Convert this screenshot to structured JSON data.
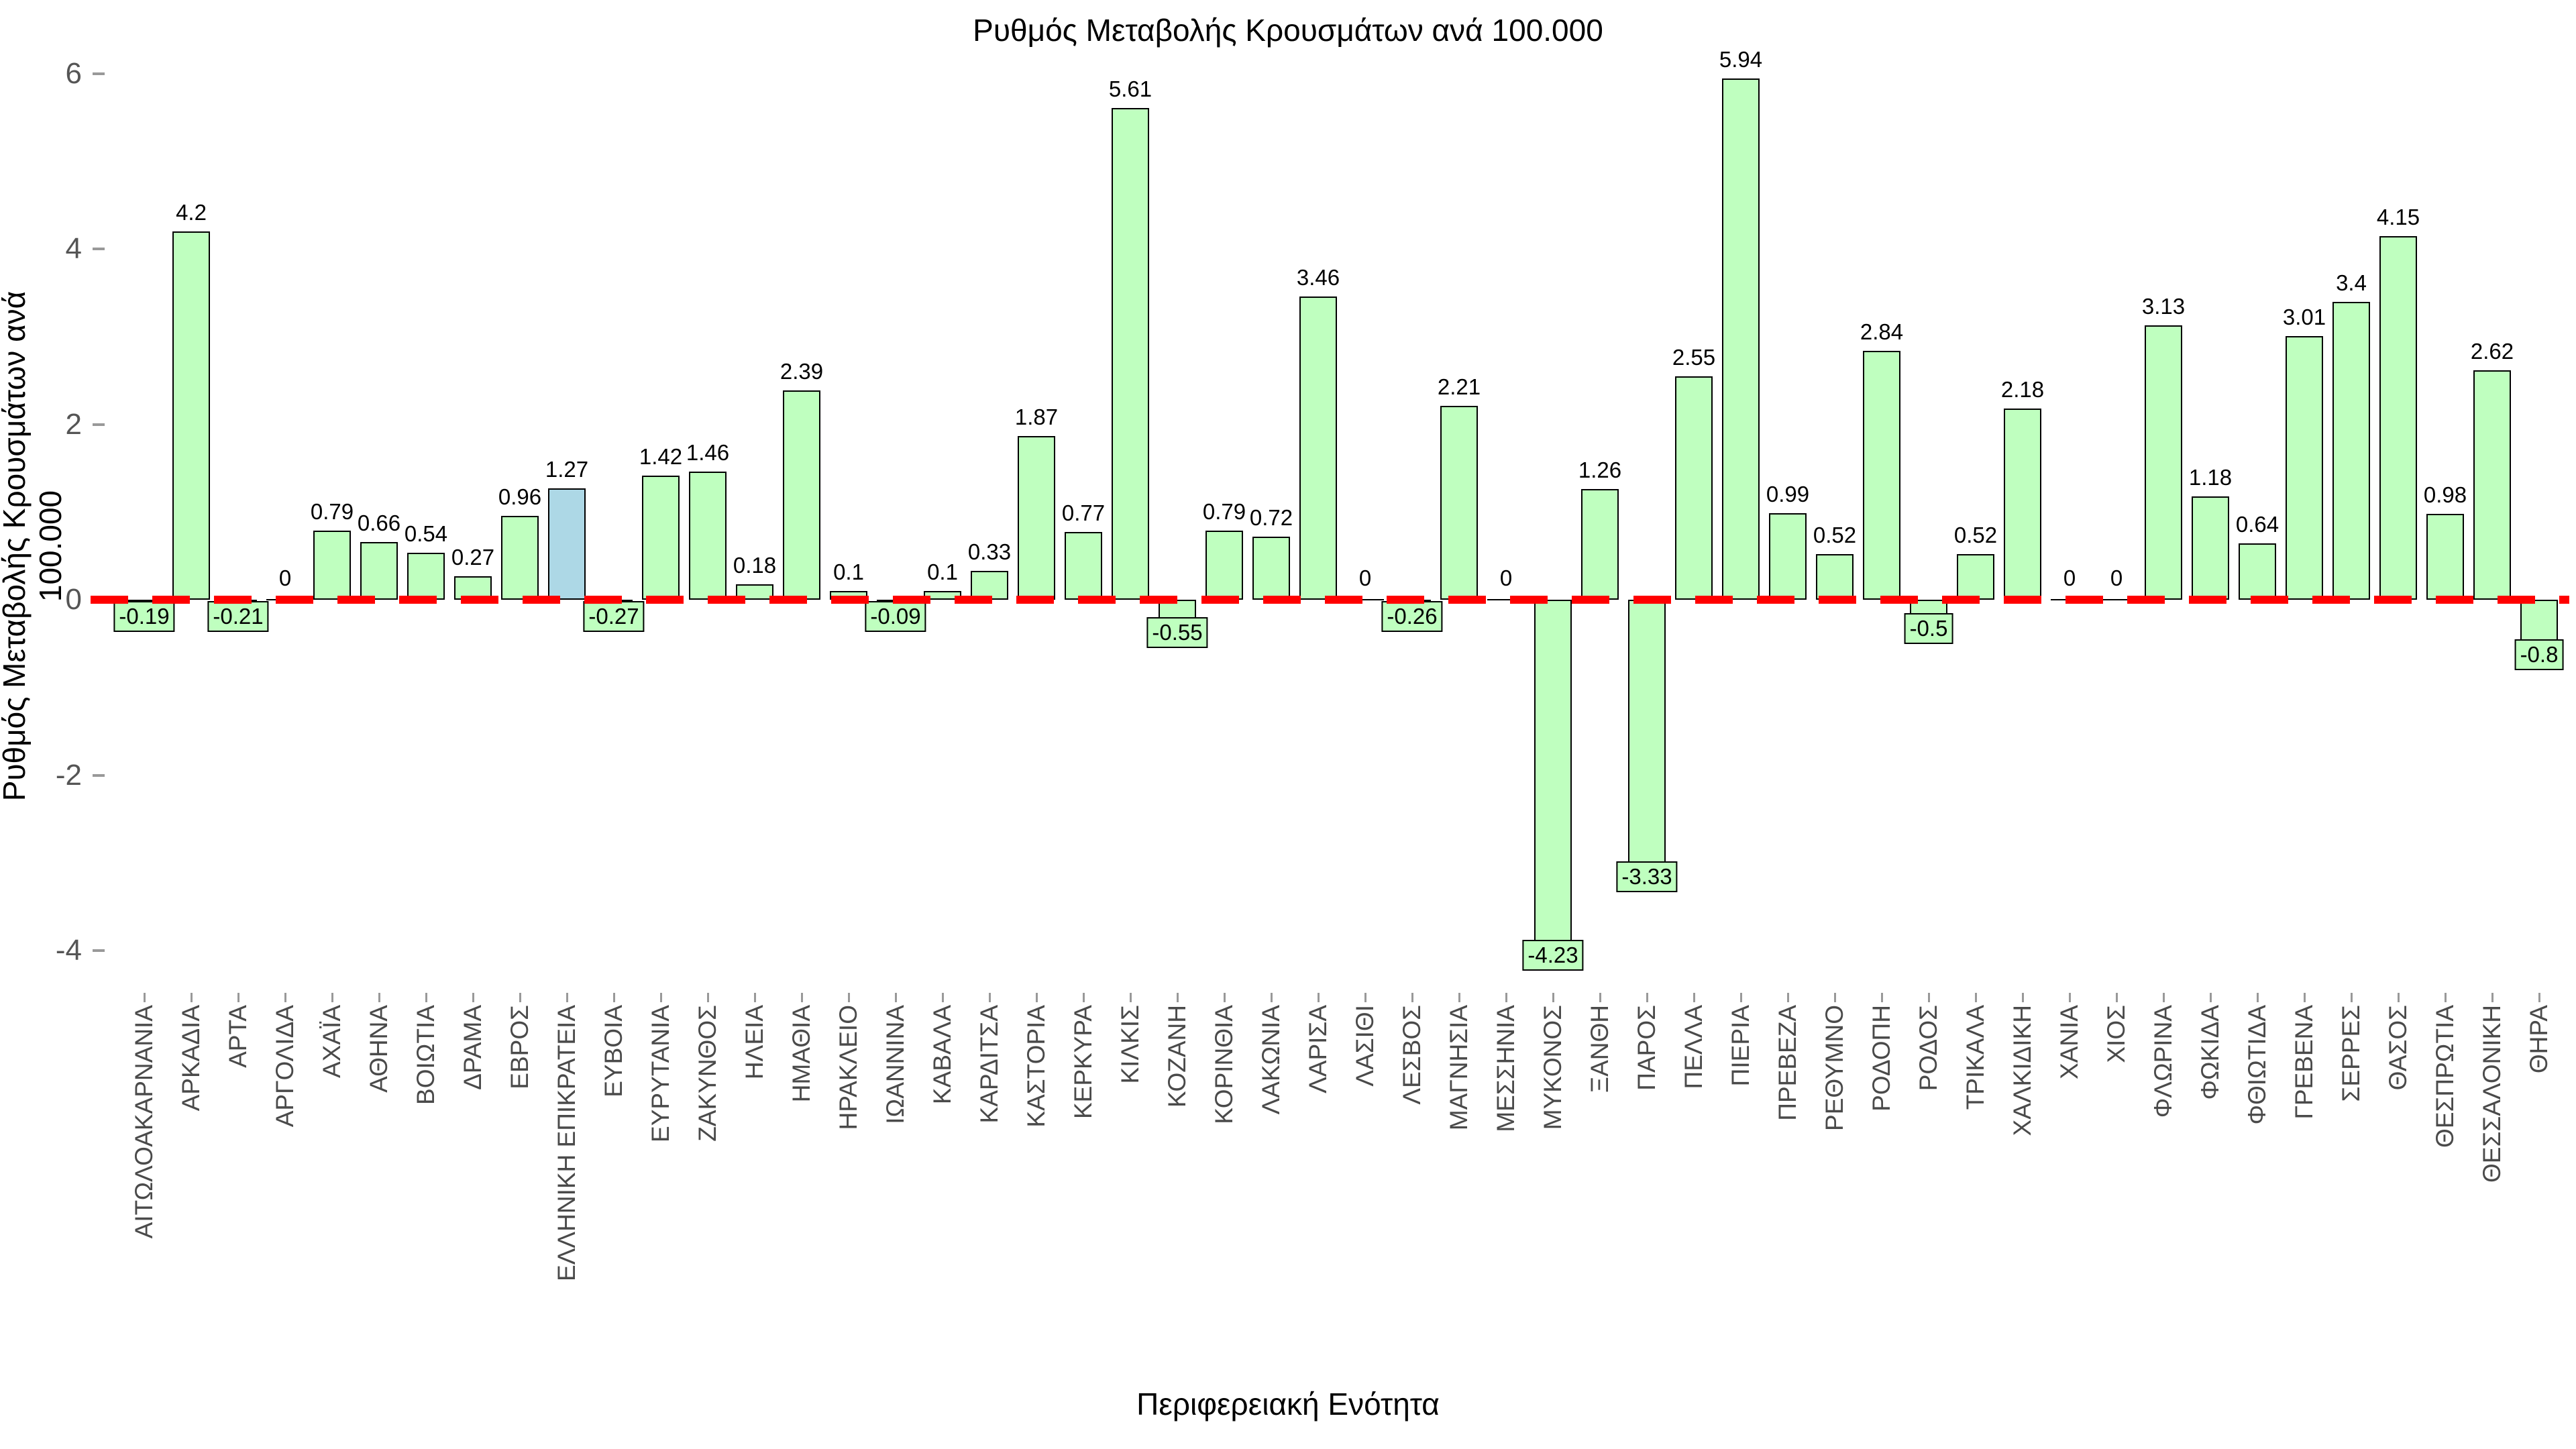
{
  "title": "Ρυθμός Μεταβολής Κρουσμάτων ανά 100.000",
  "colors": {
    "background": "#FFFFFF",
    "bar_default": "#BFFFBF",
    "bar_highlight": "#ADD8E6",
    "bar_border": "#000000",
    "zero_line": "#FF0000",
    "y_tick_label": "#555555",
    "category_label": "#4A4A4A",
    "value_label": "#000000"
  },
  "chart_data": {
    "type": "bar",
    "title": "Ρυθμός Μεταβολής Κρουσμάτων ανά 100.000",
    "xlabel": "Περιφερειακή Ενότητα",
    "ylabel": "Ρυθμός Μεταβολής Κρουσμάτων ανά 100.000",
    "ylim": [
      -4.48,
      6.15
    ],
    "yticks": [
      6,
      4,
      2,
      0,
      -2,
      -4
    ],
    "grid": false,
    "legend": "none",
    "zero_line": {
      "y": 0,
      "style": "dashed",
      "color": "#FF0000"
    },
    "highlight_category": "ΕΛΛΗΝΙΚΗ ΕΠΙΚΡΑΤΕΙΑ",
    "categories": [
      "ΑΙΤΩΛΟΑΚΑΡΝΑΝΙΑ",
      "ΑΡΚΑΔΙΑ",
      "ΑΡΤΑ",
      "ΑΡΓΟΛΙΔΑ",
      "ΑΧΑΪΑ",
      "ΑΘΗΝΑ",
      "ΒΟΙΩΤΙΑ",
      "ΔΡΑΜΑ",
      "ΕΒΡΟΣ",
      "ΕΛΛΗΝΙΚΗ ΕΠΙΚΡΑΤΕΙΑ",
      "ΕΥΒΟΙΑ",
      "ΕΥΡΥΤΑΝΙΑ",
      "ΖΑΚΥΝΘΟΣ",
      "ΗΛΕΙΑ",
      "ΗΜΑΘΙΑ",
      "ΗΡΑΚΛΕΙΟ",
      "ΙΩΑΝΝΙΝΑ",
      "ΚΑΒΑΛΑ",
      "ΚΑΡΔΙΤΣΑ",
      "ΚΑΣΤΟΡΙΑ",
      "ΚΕΡΚΥΡΑ",
      "ΚΙΛΚΙΣ",
      "ΚΟΖΑΝΗ",
      "ΚΟΡΙΝΘΙΑ",
      "ΛΑΚΩΝΙΑ",
      "ΛΑΡΙΣΑ",
      "ΛΑΣΙΘΙ",
      "ΛΕΣΒΟΣ",
      "ΜΑΓΝΗΣΙΑ",
      "ΜΕΣΣΗΝΙΑ",
      "ΜΥΚΟΝΟΣ",
      "ΞΑΝΘΗ",
      "ΠΑΡΟΣ",
      "ΠΕΛΛΑ",
      "ΠΙΕΡΙΑ",
      "ΠΡΕΒΕΖΑ",
      "ΡΕΘΥΜΝΟ",
      "ΡΟΔΟΠΗ",
      "ΡΟΔΟΣ",
      "ΤΡΙΚΑΛΑ",
      "ΧΑΛΚΙΔΙΚΗ",
      "ΧΑΝΙΑ",
      "ΧΙΟΣ",
      "ΦΛΩΡΙΝΑ",
      "ΦΩΚΙΔΑ",
      "ΦΘΙΩΤΙΔΑ",
      "ΓΡΕΒΕΝΑ",
      "ΣΕΡΡΕΣ",
      "ΘΑΣΟΣ",
      "ΘΕΣΠΡΩΤΙΑ",
      "ΘΕΣΣΑΛΟΝΙΚΗ",
      "ΘΗΡΑ"
    ],
    "values": [
      -0.19,
      4.2,
      -0.21,
      0,
      0.79,
      0.66,
      0.54,
      0.27,
      0.96,
      1.27,
      -0.27,
      1.42,
      1.46,
      0.18,
      2.39,
      0.1,
      -0.09,
      0.1,
      0.33,
      1.87,
      0.77,
      5.61,
      -0.55,
      0.79,
      0.72,
      3.46,
      0,
      -0.26,
      2.21,
      0,
      -4.23,
      1.26,
      -3.33,
      2.55,
      5.94,
      0.99,
      0.52,
      2.84,
      -0.5,
      0.52,
      2.18,
      0,
      0,
      3.13,
      1.18,
      0.64,
      3.01,
      3.4,
      4.15,
      0.98,
      2.62,
      -0.8
    ],
    "value_labels": [
      "-0.19",
      "4.2",
      "-0.21",
      "0",
      "0.79",
      "0.66",
      "0.54",
      "0.27",
      "0.96",
      "1.27",
      "-0.27",
      "1.42",
      "1.46",
      "0.18",
      "2.39",
      "0.1",
      "-0.09",
      "0.1",
      "0.33",
      "1.87",
      "0.77",
      "5.61",
      "-0.55",
      "0.79",
      "0.72",
      "3.46",
      "0",
      "-0.26",
      "2.21",
      "0",
      "-4.23",
      "1.26",
      "-3.33",
      "2.55",
      "5.94",
      "0.99",
      "0.52",
      "2.84",
      "-0.5",
      "0.52",
      "2.18",
      "0",
      "0",
      "3.13",
      "1.18",
      "0.64",
      "3.01",
      "3.4",
      "4.15",
      "0.98",
      "2.62",
      "-0.8"
    ]
  }
}
